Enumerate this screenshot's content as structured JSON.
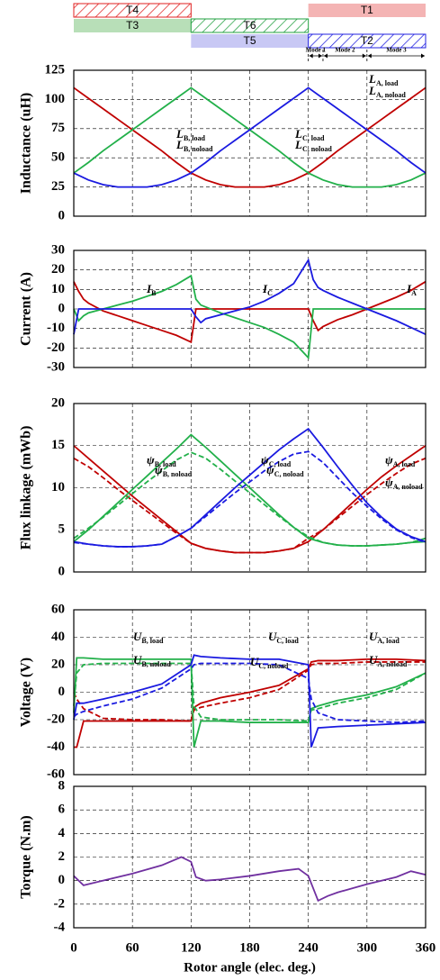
{
  "header": {
    "segments": [
      "T4",
      "T3",
      "T6",
      "T5",
      "T1",
      "T2"
    ],
    "modes": [
      "Mode 1",
      "Mode 2",
      "Mode 3"
    ]
  },
  "chart_data": [
    {
      "type": "line",
      "ylabel": "Inductance (uH)",
      "x": [
        0,
        15,
        30,
        45,
        60,
        75,
        90,
        105,
        120,
        135,
        150,
        165,
        180,
        195,
        210,
        225,
        240,
        255,
        270,
        285,
        300,
        315,
        330,
        345,
        360
      ],
      "xlim": [
        0,
        360
      ],
      "xticks": [
        0,
        60,
        120,
        180,
        240,
        300,
        360
      ],
      "ylim": [
        0,
        125
      ],
      "yticks": [
        0,
        25,
        50,
        75,
        100,
        125
      ],
      "grid": true,
      "series": [
        {
          "color": "#c00000",
          "dash": false,
          "values": [
            110,
            101,
            92,
            83,
            74,
            65,
            56,
            46,
            37,
            31,
            27,
            25,
            25,
            25,
            27,
            31,
            37,
            46,
            56,
            65,
            74,
            83,
            92,
            101,
            110
          ]
        },
        {
          "color": "#22b04a",
          "dash": false,
          "values": [
            37,
            46,
            56,
            65,
            74,
            83,
            92,
            101,
            110,
            101,
            92,
            83,
            74,
            65,
            56,
            46,
            37,
            31,
            27,
            25,
            25,
            25,
            27,
            31,
            37
          ]
        },
        {
          "color": "#1a1ae0",
          "dash": false,
          "values": [
            37,
            31,
            27,
            25,
            25,
            25,
            27,
            31,
            37,
            46,
            56,
            65,
            74,
            83,
            92,
            101,
            110,
            101,
            92,
            83,
            74,
            65,
            56,
            46,
            37
          ]
        }
      ],
      "annotations": [
        {
          "main": "L",
          "sub": "B, load"
        },
        {
          "main": "L",
          "sub": "B, noload"
        },
        {
          "main": "L",
          "sub": "C, load"
        },
        {
          "main": "L",
          "sub": "C, noload"
        },
        {
          "main": "L",
          "sub": "A, load"
        },
        {
          "main": "L",
          "sub": "A, noload"
        }
      ]
    },
    {
      "type": "line",
      "ylabel": "Current (A)",
      "x": [
        0,
        5,
        10,
        15,
        30,
        45,
        60,
        75,
        90,
        105,
        120,
        125,
        130,
        135,
        150,
        165,
        180,
        195,
        210,
        225,
        240,
        245,
        250,
        255,
        270,
        285,
        300,
        315,
        330,
        345,
        360
      ],
      "xlim": [
        0,
        360
      ],
      "xticks": [
        0,
        60,
        120,
        180,
        240,
        300,
        360
      ],
      "ylim": [
        -30,
        30
      ],
      "yticks": [
        -30,
        -20,
        -10,
        0,
        10,
        20,
        30
      ],
      "grid": true,
      "series": [
        {
          "color": "#c00000",
          "dash": false,
          "values": [
            14,
            9,
            5,
            3,
            -1,
            -3.5,
            -6,
            -8.5,
            -11,
            -13.5,
            -17,
            0,
            0,
            0,
            0,
            0,
            0,
            0,
            0,
            0,
            0,
            -6,
            -11,
            -9,
            -5.5,
            -3,
            0,
            3,
            6,
            9.5,
            14
          ]
        },
        {
          "color": "#22b04a",
          "dash": false,
          "values": [
            0,
            -6,
            -3.5,
            -2,
            0,
            2,
            4,
            6.5,
            9,
            12.5,
            17,
            5,
            2,
            1,
            -2,
            -4.5,
            -7,
            -9.5,
            -13,
            -17,
            -25,
            0,
            0,
            0,
            0,
            0,
            0,
            0,
            0,
            0,
            0
          ]
        },
        {
          "color": "#1a1ae0",
          "dash": false,
          "values": [
            -13,
            0,
            0,
            0,
            0,
            0,
            0,
            0,
            0,
            0,
            0,
            -4,
            -7,
            -5,
            -3,
            -1,
            1,
            4,
            8,
            13,
            25,
            15,
            11,
            9.5,
            6,
            3,
            0,
            -3,
            -6,
            -9.5,
            -13
          ]
        }
      ],
      "annotations": [
        {
          "main": "I",
          "sub": "B"
        },
        {
          "main": "I",
          "sub": "C"
        },
        {
          "main": "I",
          "sub": "A"
        }
      ]
    },
    {
      "type": "line",
      "ylabel": "Flux linkage (mWb)",
      "x": [
        0,
        15,
        30,
        45,
        60,
        75,
        90,
        105,
        120,
        135,
        150,
        165,
        180,
        195,
        210,
        225,
        240,
        255,
        270,
        285,
        300,
        315,
        330,
        345,
        360
      ],
      "xlim": [
        0,
        360
      ],
      "xticks": [
        0,
        60,
        120,
        180,
        240,
        300,
        360
      ],
      "ylim": [
        0,
        20
      ],
      "yticks": [
        0,
        5,
        10,
        15,
        20
      ],
      "grid": true,
      "series": [
        {
          "color": "#c00000",
          "dash": false,
          "values": [
            15,
            13.5,
            12,
            10.5,
            9,
            7.6,
            6.2,
            4.8,
            3.4,
            2.8,
            2.5,
            2.3,
            2.3,
            2.3,
            2.5,
            2.8,
            3.6,
            5,
            6.6,
            8.2,
            9.8,
            11.3,
            12.6,
            13.8,
            15
          ]
        },
        {
          "color": "#c00000",
          "dash": true,
          "values": [
            13.5,
            12.5,
            11.2,
            9.8,
            8.5,
            7.2,
            5.9,
            4.6,
            3.4,
            2.8,
            2.5,
            2.3,
            2.3,
            2.3,
            2.5,
            2.8,
            4,
            5,
            6.4,
            7.8,
            9.2,
            10.5,
            11.7,
            12.8,
            13.5
          ]
        },
        {
          "color": "#22b04a",
          "dash": false,
          "values": [
            3.6,
            5,
            6.6,
            8.2,
            9.8,
            11.4,
            13,
            14.6,
            16.3,
            14.8,
            13.2,
            11.6,
            10,
            8.4,
            6.8,
            5.3,
            4,
            3.5,
            3.2,
            3.1,
            3.1,
            3.2,
            3.3,
            3.5,
            3.6
          ]
        },
        {
          "color": "#22b04a",
          "dash": true,
          "values": [
            4,
            5.2,
            6.5,
            7.9,
            9.3,
            10.7,
            12,
            13.3,
            14.2,
            13.5,
            12.2,
            10.8,
            9.4,
            8,
            6.6,
            5.3,
            4.2,
            3.5,
            3.2,
            3.1,
            3.1,
            3.2,
            3.3,
            3.5,
            4
          ]
        },
        {
          "color": "#1a1ae0",
          "dash": false,
          "values": [
            3.6,
            3.3,
            3.1,
            3,
            3,
            3.1,
            3.3,
            4.2,
            5.2,
            6.8,
            8.4,
            10,
            11.5,
            13,
            14.5,
            15.8,
            17,
            14.8,
            12.5,
            10.3,
            8.2,
            6.5,
            5.1,
            4.2,
            3.6
          ]
        },
        {
          "color": "#1a1ae0",
          "dash": true,
          "values": [
            3.5,
            3.3,
            3.1,
            3,
            3,
            3.1,
            3.3,
            4.2,
            5.2,
            6.6,
            8,
            9.4,
            10.7,
            12,
            13.1,
            14,
            14.3,
            13,
            11.2,
            9.4,
            7.8,
            6.3,
            5,
            4.1,
            3.5
          ]
        }
      ],
      "annotations": [
        {
          "main": "ψ",
          "sub": "B, load"
        },
        {
          "main": "ψ",
          "sub": "B, noload"
        },
        {
          "main": "ψ",
          "sub": "C, load"
        },
        {
          "main": "ψ",
          "sub": "C, noload"
        },
        {
          "main": "ψ",
          "sub": "A, load"
        },
        {
          "main": "ψ",
          "sub": "A, noload"
        }
      ]
    },
    {
      "type": "line",
      "ylabel": "Voltage (V)",
      "x": [
        0,
        3,
        10,
        30,
        60,
        90,
        120,
        123,
        130,
        150,
        180,
        210,
        240,
        243,
        250,
        270,
        300,
        330,
        360
      ],
      "xlim": [
        0,
        360
      ],
      "xticks": [
        0,
        60,
        120,
        180,
        240,
        300,
        360
      ],
      "ylim": [
        -60,
        60
      ],
      "yticks": [
        -60,
        -40,
        -20,
        0,
        20,
        40,
        60
      ],
      "grid": true,
      "series": [
        {
          "color": "#c00000",
          "dash": false,
          "values": [
            -40,
            -40,
            -21,
            -21,
            -21,
            -21,
            -21,
            -11,
            -8,
            -4,
            0,
            5,
            17,
            22,
            23,
            23,
            24,
            24,
            23
          ]
        },
        {
          "color": "#c00000",
          "dash": true,
          "values": [
            0,
            -5,
            -12,
            -19,
            -20,
            -20,
            -21,
            -13,
            -11,
            -8,
            -4,
            2,
            16,
            20,
            21,
            21,
            22,
            22,
            22
          ]
        },
        {
          "color": "#22b04a",
          "dash": false,
          "values": [
            -15,
            25,
            25,
            24,
            24,
            24,
            24,
            -40,
            -21,
            -21,
            -22,
            -22,
            -22,
            -12,
            -10,
            -6,
            -2,
            4,
            14
          ]
        },
        {
          "color": "#22b04a",
          "dash": true,
          "values": [
            -10,
            14,
            20,
            21,
            21,
            21,
            21,
            -10,
            -18,
            -20,
            -20,
            -20,
            -21,
            -13,
            -12,
            -8,
            -4,
            2,
            14
          ]
        },
        {
          "color": "#1a1ae0",
          "dash": false,
          "values": [
            -20,
            -8,
            -8,
            -5,
            0,
            6,
            20,
            27,
            26,
            25,
            24,
            24,
            20,
            -40,
            -26,
            -25,
            -24,
            -23,
            -22
          ]
        },
        {
          "color": "#1a1ae0",
          "dash": true,
          "values": [
            -18,
            -16,
            -14,
            -10,
            -5,
            3,
            17,
            20,
            21,
            21,
            21,
            20,
            10,
            -5,
            -15,
            -20,
            -21,
            -22,
            -21
          ]
        }
      ],
      "annotations": [
        {
          "main": "U",
          "sub": "B, load"
        },
        {
          "main": "U",
          "sub": "B, noload"
        },
        {
          "main": "U",
          "sub": "C, load"
        },
        {
          "main": "U",
          "sub": "C, noload"
        },
        {
          "main": "U",
          "sub": "A, load"
        },
        {
          "main": "U",
          "sub": "A, noload"
        }
      ]
    },
    {
      "type": "line",
      "ylabel": "Torque (N.m)",
      "xlabel": "Rotor angle (elec. deg.)",
      "x": [
        0,
        10,
        30,
        60,
        90,
        110,
        120,
        125,
        135,
        150,
        180,
        210,
        230,
        240,
        250,
        260,
        270,
        300,
        330,
        345,
        360
      ],
      "xlim": [
        0,
        360
      ],
      "xticks": [
        0,
        60,
        120,
        180,
        240,
        300,
        360
      ],
      "ylim": [
        -4,
        8
      ],
      "yticks": [
        -4,
        -2,
        0,
        2,
        4,
        6,
        8
      ],
      "grid": true,
      "series": [
        {
          "color": "#7030a0",
          "dash": false,
          "values": [
            0.4,
            -0.4,
            0,
            0.6,
            1.3,
            2,
            1.6,
            0.3,
            0,
            0.1,
            0.4,
            0.8,
            1,
            0.4,
            -1.7,
            -1.3,
            -1,
            -0.3,
            0.3,
            0.8,
            0.5
          ]
        }
      ],
      "annotations": []
    }
  ]
}
